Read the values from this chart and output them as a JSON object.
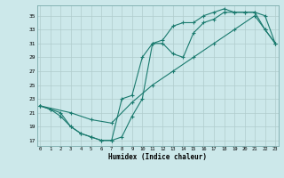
{
  "title": "",
  "xlabel": "Humidex (Indice chaleur)",
  "background_color": "#cce8ea",
  "grid_color": "#b0cccc",
  "line_color": "#1a7a6e",
  "yticks": [
    17,
    19,
    21,
    23,
    25,
    27,
    29,
    31,
    33,
    35
  ],
  "xticks": [
    0,
    1,
    2,
    3,
    4,
    5,
    6,
    7,
    8,
    9,
    10,
    11,
    12,
    13,
    14,
    15,
    16,
    17,
    18,
    19,
    20,
    21,
    22,
    23
  ],
  "xlim": [
    -0.3,
    23.3
  ],
  "ylim": [
    16.2,
    36.5
  ],
  "line1_x": [
    0,
    1,
    2,
    3,
    4,
    5,
    6,
    7,
    8,
    9,
    10,
    11,
    12,
    13,
    14,
    15,
    16,
    17,
    18,
    19,
    20,
    21,
    22,
    23
  ],
  "line1_y": [
    22.0,
    21.5,
    21.0,
    19.0,
    18.0,
    17.5,
    17.0,
    17.0,
    17.5,
    20.5,
    23.0,
    31.0,
    31.0,
    29.5,
    29.0,
    32.5,
    34.0,
    34.5,
    35.5,
    35.5,
    35.5,
    35.5,
    35.0,
    31.0
  ],
  "line2_x": [
    0,
    1,
    2,
    3,
    4,
    5,
    6,
    7,
    8,
    9,
    10,
    11,
    12,
    13,
    14,
    15,
    16,
    17,
    18,
    19,
    20,
    21,
    22,
    23
  ],
  "line2_y": [
    22.0,
    21.5,
    20.5,
    19.0,
    18.0,
    17.5,
    17.0,
    17.0,
    23.0,
    23.5,
    29.0,
    31.0,
    31.5,
    33.5,
    34.0,
    34.0,
    35.0,
    35.5,
    36.0,
    35.5,
    35.5,
    35.5,
    33.0,
    31.0
  ],
  "line3_x": [
    0,
    3,
    5,
    7,
    9,
    11,
    13,
    15,
    17,
    19,
    21,
    22,
    23
  ],
  "line3_y": [
    22.0,
    21.0,
    20.0,
    19.5,
    22.5,
    25.0,
    27.0,
    29.0,
    31.0,
    33.0,
    35.0,
    33.0,
    31.0
  ]
}
